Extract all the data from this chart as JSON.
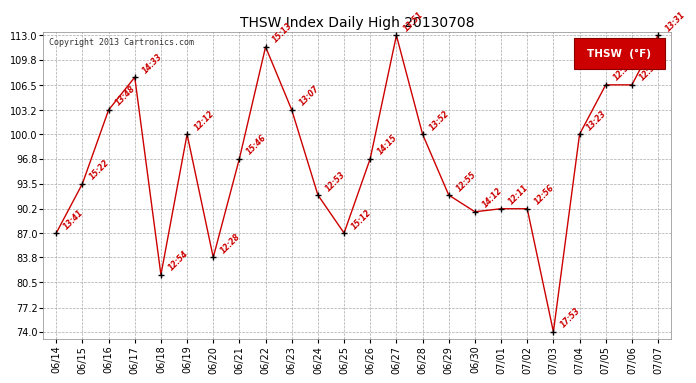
{
  "title": "THSW Index Daily High 20130708",
  "copyright": "Copyright 2013 Cartronics.com",
  "legend_label": "THSW  (°F)",
  "dates": [
    "06/14",
    "06/15",
    "06/16",
    "06/17",
    "06/18",
    "06/19",
    "06/20",
    "06/21",
    "06/22",
    "06/23",
    "06/24",
    "06/25",
    "06/26",
    "06/27",
    "06/28",
    "06/29",
    "06/30",
    "07/01",
    "07/02",
    "07/03",
    "07/04",
    "07/05",
    "07/06",
    "07/07"
  ],
  "values": [
    87.0,
    93.5,
    103.2,
    107.5,
    81.5,
    100.0,
    83.8,
    96.8,
    111.5,
    103.2,
    92.0,
    87.0,
    96.8,
    113.0,
    100.0,
    92.0,
    89.8,
    90.2,
    90.2,
    74.0,
    100.0,
    106.5,
    106.5,
    113.0
  ],
  "times": [
    "13:41",
    "15:22",
    "13:48",
    "14:33",
    "12:54",
    "12:12",
    "12:28",
    "15:46",
    "15:13",
    "13:07",
    "12:53",
    "15:12",
    "14:15",
    "13:51",
    "13:52",
    "12:55",
    "14:12",
    "12:11",
    "12:56",
    "17:53",
    "13:23",
    "12:53",
    "12:53",
    "13:31"
  ],
  "ylim": [
    74.0,
    113.0
  ],
  "yticks": [
    74.0,
    77.2,
    80.5,
    83.8,
    87.0,
    90.2,
    93.5,
    96.8,
    100.0,
    103.2,
    106.5,
    109.8,
    113.0
  ],
  "ytick_labels": [
    "74.0",
    "77.2",
    "80.5",
    "83.8",
    "87.0",
    "90.2",
    "93.5",
    "96.8",
    "100.0",
    "103.2",
    "106.5",
    "109.8",
    "113.0"
  ],
  "line_color": "#cc0000",
  "marker_color": "#000000",
  "bg_color": "#ffffff",
  "grid_color": "#aaaaaa",
  "title_color": "#000000",
  "annotation_color": "#cc0000",
  "legend_bg": "#cc0000",
  "legend_text_color": "#ffffff",
  "figsize": [
    6.9,
    3.75
  ],
  "dpi": 100
}
